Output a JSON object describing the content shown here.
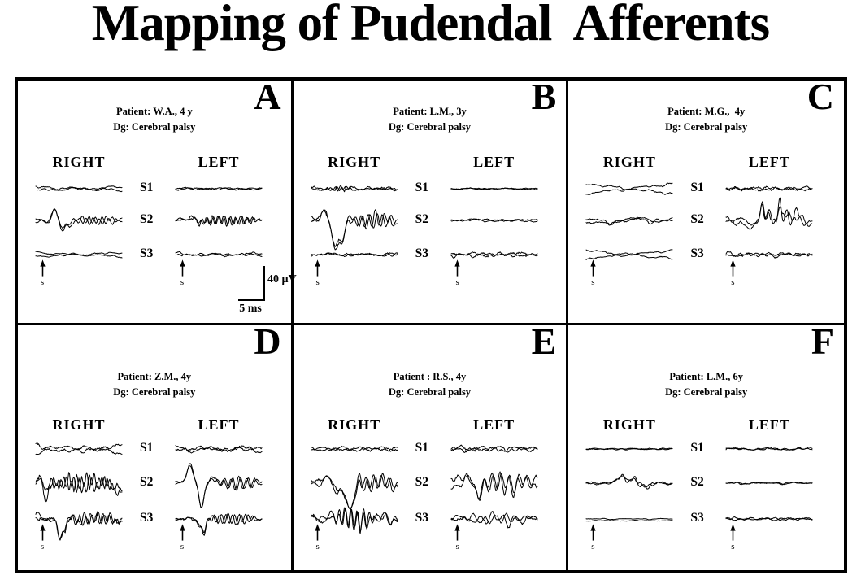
{
  "title": "Mapping of Pudendal  Afferents",
  "column_headers": {
    "right": "RIGHT",
    "left": "LEFT"
  },
  "segment_labels": [
    "S1",
    "S2",
    "S3"
  ],
  "stimulus_label": "s",
  "scale_bar": {
    "voltage": "40 µV",
    "time": "5 ms"
  },
  "panels": [
    {
      "letter": "A",
      "row": "top",
      "show_scale_bar": true,
      "patient_line": "Patient: W.A., 4 y",
      "dg_line": "Dg: Cerebral palsy",
      "sides": {
        "right": [
          {
            "seed": 101,
            "noise": 0.9,
            "rough": 0.4,
            "dual": 1,
            "split": 2
          },
          {
            "seed": 102,
            "noise": 1.2,
            "rough": 0.6,
            "dual": 1,
            "bumps": [
              [
                0.13,
                -3,
                0.04
              ],
              [
                0.22,
                13,
                0.045
              ],
              [
                0.31,
                -11,
                0.04
              ],
              [
                0.39,
                -7,
                0.03
              ]
            ],
            "osc": [
              [
                0.42,
                1,
                4,
                13
              ]
            ]
          },
          {
            "seed": 103,
            "noise": 0.7,
            "rough": 0.3,
            "dual": 1,
            "split": 2.5
          }
        ],
        "left": [
          {
            "seed": 104,
            "noise": 0.7,
            "rough": 0.4,
            "dual": 1
          },
          {
            "seed": 105,
            "noise": 1.2,
            "rough": 0.8,
            "dual": 1,
            "bumps": [
              [
                0.2,
                5,
                0.04
              ],
              [
                0.28,
                -4,
                0.03
              ]
            ],
            "osc": [
              [
                0.15,
                1,
                5,
                15
              ]
            ]
          },
          {
            "seed": 106,
            "noise": 1.0,
            "rough": 0.5,
            "dual": 1,
            "split": 1
          }
        ]
      }
    },
    {
      "letter": "B",
      "row": "top",
      "show_scale_bar": false,
      "patient_line": "Patient: L.M., 3y",
      "dg_line": "Dg: Cerebral palsy",
      "sides": {
        "right": [
          {
            "seed": 201,
            "noise": 1.1,
            "rough": 0.7,
            "dual": 1,
            "osc": [
              [
                0.18,
                0.5,
                2.5,
                18
              ]
            ]
          },
          {
            "seed": 202,
            "noise": 2,
            "rough": 1,
            "dual": 1,
            "bumps": [
              [
                0.15,
                14,
                0.045
              ],
              [
                0.28,
                -34,
                0.05
              ],
              [
                0.36,
                -24,
                0.04
              ]
            ],
            "osc": [
              [
                0.42,
                1,
                9,
                12
              ]
            ]
          },
          {
            "seed": 203,
            "noise": 1.1,
            "rough": 0.6,
            "dual": 1
          }
        ],
        "left": [
          {
            "seed": 204,
            "noise": 0.5,
            "rough": 0.3,
            "dual": 1
          },
          {
            "seed": 205,
            "noise": 0.8,
            "rough": 0.4,
            "dual": 1,
            "bumps": [
              [
                0.25,
                2,
                0.05
              ]
            ]
          },
          {
            "seed": 206,
            "noise": 1.3,
            "rough": 0.8,
            "dual": 1
          }
        ]
      }
    },
    {
      "letter": "C",
      "row": "top",
      "show_scale_bar": false,
      "patient_line": "Patient: M.G.,  4y",
      "dg_line": "Dg: Cerebral palsy",
      "sides": {
        "right": [
          {
            "seed": 301,
            "noise": 0.8,
            "rough": 0.4,
            "dual": 1,
            "split": 6
          },
          {
            "seed": 302,
            "noise": 1.2,
            "rough": 0.5,
            "dual": 1,
            "split": 1.5,
            "bumps": [
              [
                0.25,
                -5,
                0.08
              ],
              [
                0.55,
                2,
                0.1
              ]
            ]
          },
          {
            "seed": 303,
            "noise": 0.8,
            "rough": 0.4,
            "dual": 1,
            "split": 5
          }
        ],
        "left": [
          {
            "seed": 304,
            "noise": 1.2,
            "rough": 0.8,
            "dual": 1
          },
          {
            "seed": 305,
            "noise": 1.8,
            "rough": 0.8,
            "dual": 1,
            "split": 3,
            "bumps": [
              [
                0.28,
                -8,
                0.06
              ],
              [
                0.42,
                20,
                0.025
              ],
              [
                0.5,
                10,
                0.03
              ],
              [
                0.62,
                22,
                0.022
              ],
              [
                0.7,
                9,
                0.03
              ],
              [
                0.82,
                8,
                0.04
              ],
              [
                0.95,
                -4,
                0.04
              ]
            ],
            "osc": [
              [
                0.35,
                1,
                5,
                13
              ]
            ]
          },
          {
            "seed": 306,
            "noise": 1.4,
            "rough": 0.8,
            "dual": 1
          }
        ]
      }
    },
    {
      "letter": "D",
      "row": "bottom",
      "show_scale_bar": false,
      "patient_line": "Patient: Z.M., 4y",
      "dg_line": "Dg: Cerebral palsy",
      "sides": {
        "right": [
          {
            "seed": 401,
            "noise": 1.5,
            "rough": 0.9,
            "dual": 1,
            "split": 4
          },
          {
            "seed": 402,
            "noise": 3,
            "rough": 1.8,
            "dual": 1,
            "bumps": [
              [
                0.06,
                10,
                0.03
              ],
              [
                0.12,
                -16,
                0.035
              ],
              [
                0.98,
                -8,
                0.1
              ]
            ],
            "osc": [
              [
                0.1,
                1,
                8,
                17
              ]
            ]
          },
          {
            "seed": 403,
            "noise": 2.5,
            "rough": 1.5,
            "dual": 1,
            "bumps": [
              [
                0.02,
                6,
                0.04
              ],
              [
                0.28,
                -26,
                0.035
              ],
              [
                0.34,
                -12,
                0.03
              ]
            ],
            "osc": [
              [
                0.3,
                1,
                6,
                14
              ]
            ]
          }
        ],
        "left": [
          {
            "seed": 404,
            "noise": 1.5,
            "rough": 0.9,
            "dual": 1,
            "split": 2
          },
          {
            "seed": 405,
            "noise": 1.4,
            "rough": 0.7,
            "dual": 1,
            "bumps": [
              [
                0.17,
                22,
                0.05
              ],
              [
                0.3,
                -30,
                0.04
              ],
              [
                0.42,
                7,
                0.04
              ]
            ],
            "osc": [
              [
                0.45,
                1,
                7,
                11
              ]
            ]
          },
          {
            "seed": 406,
            "noise": 1.2,
            "rough": 0.7,
            "dual": 1,
            "bumps": [
              [
                0.28,
                -8,
                0.03
              ],
              [
                0.33,
                -18,
                0.025
              ]
            ],
            "osc": [
              [
                0.35,
                0.95,
                6,
                13
              ]
            ]
          }
        ]
      }
    },
    {
      "letter": "E",
      "row": "bottom",
      "show_scale_bar": false,
      "patient_line": "Patient : R.S., 4y",
      "dg_line": "Dg: Cerebral palsy",
      "sides": {
        "right": [
          {
            "seed": 501,
            "noise": 1.3,
            "rough": 0.8,
            "dual": 1
          },
          {
            "seed": 502,
            "noise": 2.5,
            "rough": 1.1,
            "dual": 1,
            "bumps": [
              [
                0.18,
                10,
                0.05
              ],
              [
                0.3,
                -10,
                0.03
              ],
              [
                0.44,
                -32,
                0.08
              ],
              [
                0.55,
                14,
                0.025
              ]
            ],
            "osc": [
              [
                0.55,
                1,
                10,
                11
              ]
            ]
          },
          {
            "seed": 503,
            "noise": 2.5,
            "rough": 1.2,
            "dual": 1,
            "bumps": [
              [
                0.22,
                8,
                0.04
              ]
            ],
            "osc": [
              [
                0.25,
                0.75,
                13,
                14
              ],
              [
                0.75,
                1,
                6,
                9
              ]
            ]
          }
        ],
        "left": [
          {
            "seed": 504,
            "noise": 1.6,
            "rough": 0.9,
            "dual": 1
          },
          {
            "seed": 505,
            "noise": 3,
            "rough": 1.2,
            "dual": 1,
            "split": 4,
            "bumps": [
              [
                0.2,
                6,
                0.05
              ],
              [
                0.33,
                -14,
                0.04
              ]
            ],
            "osc": [
              [
                0.25,
                1,
                11,
                10
              ]
            ]
          },
          {
            "seed": 506,
            "noise": 2.2,
            "rough": 0.9,
            "dual": 1,
            "osc": [
              [
                0.2,
                1,
                6,
                8
              ]
            ]
          }
        ]
      }
    },
    {
      "letter": "F",
      "row": "bottom",
      "show_scale_bar": false,
      "patient_line": "Patient: L.M., 6y",
      "dg_line": "Dg: Cerebral palsy",
      "sides": {
        "right": [
          {
            "seed": 601,
            "noise": 0.5,
            "rough": 0.25,
            "dual": 1
          },
          {
            "seed": 602,
            "noise": 0.8,
            "rough": 0.4,
            "dual": 1,
            "bumps": [
              [
                0.35,
                4,
                0.05
              ],
              [
                0.42,
                8,
                0.035
              ],
              [
                0.5,
                6,
                0.03
              ],
              [
                0.57,
                7,
                0.03
              ],
              [
                0.65,
                -4,
                0.03
              ],
              [
                0.72,
                -5,
                0.04
              ]
            ],
            "osc": [
              [
                0.35,
                0.85,
                3,
                10
              ]
            ]
          },
          {
            "seed": 603,
            "noise": 0.35,
            "rough": 0.15,
            "dual": 1,
            "yoff": 2.2
          }
        ],
        "left": [
          {
            "seed": 604,
            "noise": 0.8,
            "rough": 0.4,
            "dual": 1
          },
          {
            "seed": 605,
            "noise": 0.7,
            "rough": 0.35,
            "dual": 1
          },
          {
            "seed": 606,
            "noise": 0.9,
            "rough": 0.4,
            "dual": 1
          }
        ]
      }
    }
  ],
  "chart_data": {
    "type": "line",
    "title": "Mapping of Pudendal Afferents",
    "description": "Six panels (A–F) of pudendal somatosensory evoked traces recorded at sacral segments S1, S2, S3 after stimulation (s) on the RIGHT and LEFT sides; two superimposed sweeps per trace.",
    "rows": [
      "S1",
      "S2",
      "S3"
    ],
    "columns": [
      "RIGHT",
      "LEFT"
    ],
    "scale_bar": {
      "voltage": "40 µV",
      "time": "5 ms"
    },
    "stimulus_marker": "s",
    "panels": [
      {
        "panel": "A",
        "patient": "W.A., 4 y",
        "diagnosis": "Cerebral palsy",
        "responses": {
          "RIGHT": {
            "S1": "absent (flat)",
            "S2": "present, biphasic ~30 µV",
            "S3": "absent (flat)"
          },
          "LEFT": {
            "S1": "absent (flat)",
            "S2": "small noisy ~10 µV",
            "S3": "absent (flat)"
          }
        }
      },
      {
        "panel": "B",
        "patient": "L.M., 3y",
        "diagnosis": "Cerebral palsy",
        "responses": {
          "RIGHT": {
            "S1": "low noise only",
            "S2": "present, large negative deflection ~50 µV",
            "S3": "low noise only"
          },
          "LEFT": {
            "S1": "absent (flat)",
            "S2": "absent (flat)",
            "S3": "low noise only"
          }
        }
      },
      {
        "panel": "C",
        "patient": "M.G., 4y",
        "diagnosis": "Cerebral palsy",
        "responses": {
          "RIGHT": {
            "S1": "absent (crossing baselines)",
            "S2": "absent (gentle drift)",
            "S3": "absent (crossing baselines)"
          },
          "LEFT": {
            "S1": "low noise only",
            "S2": "present, polyphasic spikes ~30 µV",
            "S3": "low noise only"
          }
        }
      },
      {
        "panel": "D",
        "patient": "Z.M., 4y",
        "diagnosis": "Cerebral palsy",
        "responses": {
          "RIGHT": {
            "S1": "low noise",
            "S2": "noisy activity ~25 µV",
            "S3": "noisy with negative deflection ~30 µV"
          },
          "LEFT": {
            "S1": "low noise",
            "S2": "present, biphasic ~55 µV peak-to-peak",
            "S3": "small negative deflection ~20 µV"
          }
        }
      },
      {
        "panel": "E",
        "patient": "R.S., 4y",
        "diagnosis": "Cerebral palsy",
        "responses": {
          "RIGHT": {
            "S1": "low noise",
            "S2": "present, broad negative deflection ~50 µV",
            "S3": "noisy bursts ~25 µV"
          },
          "LEFT": {
            "S1": "low noise",
            "S2": "noisy polyphasic ~30 µV",
            "S3": "noisy ~15 µV"
          }
        }
      },
      {
        "panel": "F",
        "patient": "L.M., 6y",
        "diagnosis": "Cerebral palsy",
        "responses": {
          "RIGHT": {
            "S1": "absent (flat)",
            "S2": "small undulation ~12 µV",
            "S3": "absent (flat)"
          },
          "LEFT": {
            "S1": "absent (flat)",
            "S2": "absent (flat)",
            "S3": "absent (flat)"
          }
        }
      }
    ]
  }
}
